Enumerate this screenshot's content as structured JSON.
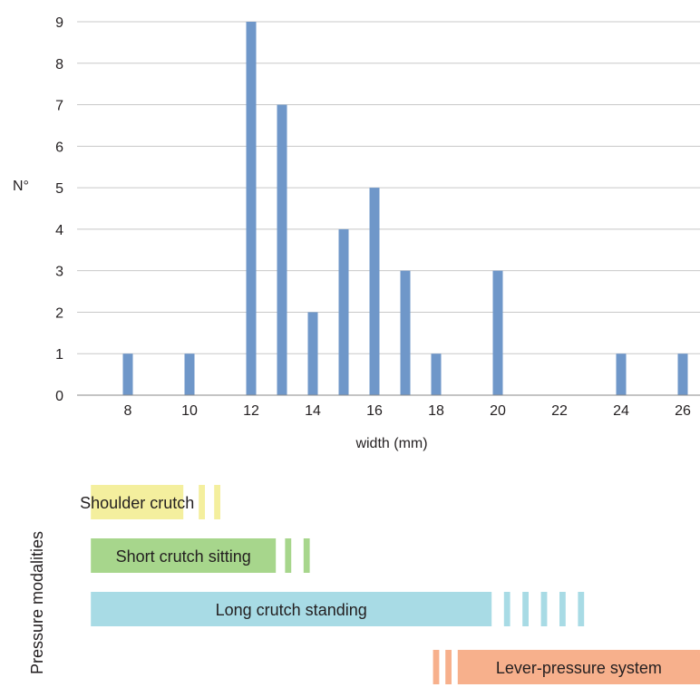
{
  "chart_data": {
    "type": "bar",
    "xlabel": "width (mm)",
    "ylabel": "N°",
    "ylim": [
      0,
      9
    ],
    "xlim": [
      6.8,
      26.6
    ],
    "grid": "horizontal",
    "x_ticks": [
      8,
      10,
      12,
      14,
      16,
      18,
      20,
      22,
      24,
      26
    ],
    "y_ticks": [
      0,
      1,
      2,
      3,
      4,
      5,
      6,
      7,
      8,
      9
    ],
    "bar_color": "#6f97c9",
    "points": [
      {
        "x": 8,
        "y": 1
      },
      {
        "x": 10,
        "y": 1
      },
      {
        "x": 12,
        "y": 9
      },
      {
        "x": 13,
        "y": 7
      },
      {
        "x": 14,
        "y": 2
      },
      {
        "x": 15,
        "y": 4
      },
      {
        "x": 16,
        "y": 5
      },
      {
        "x": 17,
        "y": 3
      },
      {
        "x": 18,
        "y": 1
      },
      {
        "x": 20,
        "y": 3
      },
      {
        "x": 24,
        "y": 1
      },
      {
        "x": 26,
        "y": 1
      }
    ]
  },
  "modalities": {
    "axis_label": "Pressure modalities",
    "items": [
      {
        "label": "Shoulder crutch",
        "color": "#f4ef9e",
        "solid_range": [
          6.8,
          9.8
        ],
        "dash_ranges": [
          [
            10.3,
            10.5
          ],
          [
            10.8,
            11.0
          ]
        ]
      },
      {
        "label": "Short crutch sitting",
        "color": "#a7d68c",
        "solid_range": [
          6.8,
          12.8
        ],
        "dash_ranges": [
          [
            13.1,
            13.3
          ],
          [
            13.7,
            13.9
          ]
        ]
      },
      {
        "label": "Long crutch standing",
        "color": "#a8dbe5",
        "solid_range": [
          6.8,
          19.8
        ],
        "dash_ranges": [
          [
            20.2,
            20.4
          ],
          [
            20.8,
            21.0
          ],
          [
            21.4,
            21.6
          ],
          [
            22.0,
            22.2
          ],
          [
            22.6,
            22.8
          ]
        ]
      },
      {
        "label": "Lever-pressure system",
        "color": "#f7b08c",
        "solid_range": [
          18.7,
          26.8
        ],
        "dash_ranges": [
          [
            17.9,
            18.1
          ],
          [
            18.3,
            18.5
          ]
        ]
      }
    ]
  }
}
